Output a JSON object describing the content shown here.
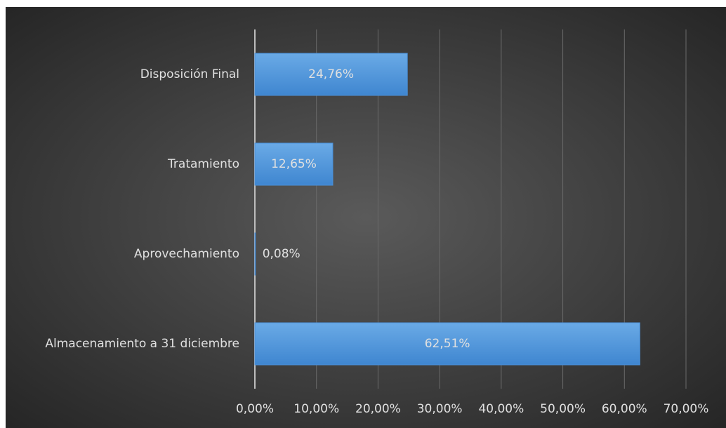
{
  "chart_data": {
    "type": "barh",
    "categories": [
      "Disposición Final",
      "Tratamiento",
      "Aprovechamiento",
      "Almacenamiento a 31 diciembre"
    ],
    "values": [
      24.76,
      12.65,
      0.08,
      62.51
    ],
    "value_labels": [
      "24,76%",
      "12,65%",
      "0,08%",
      "62,51%"
    ],
    "color": "#4a90d9",
    "xlim": [
      0,
      70
    ],
    "xticks": [
      {
        "value": 0,
        "label": "0,00%"
      },
      {
        "value": 10,
        "label": "10,00%"
      },
      {
        "value": 20,
        "label": "20,00%"
      },
      {
        "value": 30,
        "label": "30,00%"
      },
      {
        "value": 40,
        "label": "40,00%"
      },
      {
        "value": 50,
        "label": "50,00%"
      },
      {
        "value": 60,
        "label": "60,00%"
      },
      {
        "value": 70,
        "label": "70,00%"
      }
    ],
    "grid": true
  }
}
